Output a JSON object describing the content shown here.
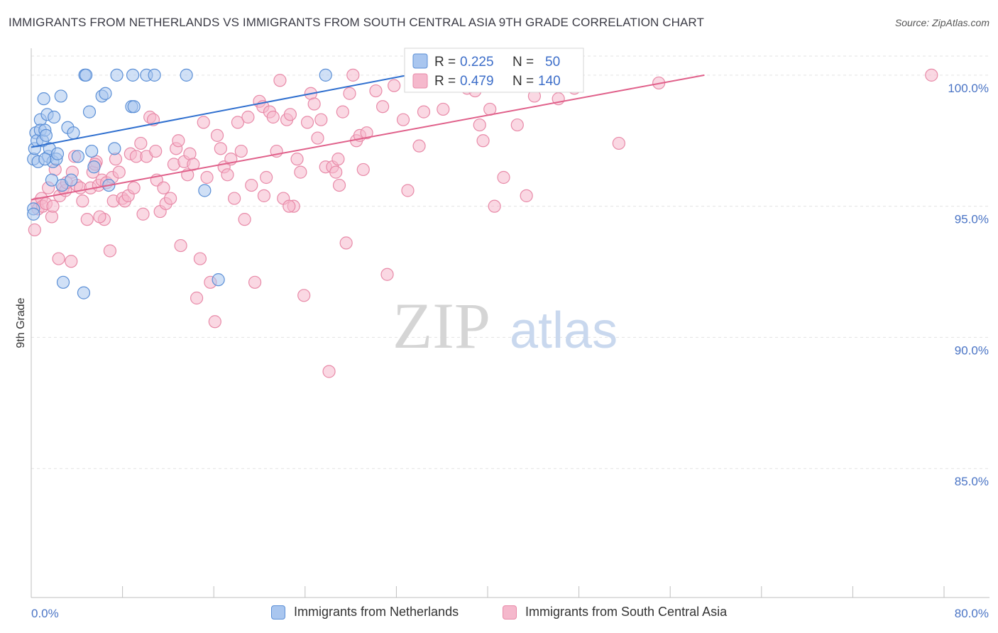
{
  "header": {
    "title": "IMMIGRANTS FROM NETHERLANDS VS IMMIGRANTS FROM SOUTH CENTRAL ASIA 9TH GRADE CORRELATION CHART",
    "source": "Source: ZipAtlas.com"
  },
  "watermark": {
    "zip": "ZIP",
    "atlas": "atlas"
  },
  "colors": {
    "blue_fill": "#a9c6ef",
    "blue_stroke": "#5b8fd6",
    "blue_line": "#2f6fcf",
    "pink_fill": "#f5b8cc",
    "pink_stroke": "#e88aa8",
    "pink_line": "#e0608a",
    "axis_text": "#4a74c5",
    "grid": "#e3e3e3"
  },
  "legend": {
    "blue": {
      "r_label": "R =",
      "r_value": "0.225",
      "n_label": "N =",
      "n_value": "50"
    },
    "pink": {
      "r_label": "R =",
      "r_value": "0.479",
      "n_label": "N =",
      "n_value": "140"
    }
  },
  "bottom_legend": {
    "blue": "Immigrants from Netherlands",
    "pink": "Immigrants from South Central Asia"
  },
  "chart_data": {
    "type": "scatter",
    "title": "IMMIGRANTS FROM NETHERLANDS VS IMMIGRANTS FROM SOUTH CENTRAL ASIA 9TH GRADE CORRELATION CHART",
    "xlabel": "",
    "ylabel": "9th Grade",
    "xlim": [
      0,
      80
    ],
    "ylim": [
      80,
      100.7
    ],
    "x_tick_labels": [
      "0.0%",
      "80.0%"
    ],
    "y_ticks": [
      85,
      90,
      95,
      100
    ],
    "y_tick_labels": [
      "85.0%",
      "90.0%",
      "95.0%",
      "100.0%"
    ],
    "series": [
      {
        "name": "Immigrants from Netherlands",
        "color": "blue",
        "R": 0.225,
        "N": 50,
        "trend": {
          "x": [
            0,
            33
          ],
          "y": [
            97.25,
            100.0
          ]
        },
        "points": [
          [
            0.2,
            96.8
          ],
          [
            0.3,
            97.2
          ],
          [
            0.4,
            97.8
          ],
          [
            0.5,
            97.5
          ],
          [
            0.6,
            96.7
          ],
          [
            0.8,
            98.3
          ],
          [
            0.8,
            97.9
          ],
          [
            1.0,
            97.5
          ],
          [
            1.1,
            99.1
          ],
          [
            1.2,
            97.9
          ],
          [
            1.3,
            97.7
          ],
          [
            1.4,
            98.5
          ],
          [
            1.5,
            96.9
          ],
          [
            1.6,
            97.2
          ],
          [
            1.8,
            96.0
          ],
          [
            1.9,
            96.7
          ],
          [
            2.0,
            98.4
          ],
          [
            2.2,
            96.8
          ],
          [
            2.3,
            97.0
          ],
          [
            2.6,
            99.2
          ],
          [
            2.7,
            95.8
          ],
          [
            3.2,
            98.0
          ],
          [
            3.5,
            96.0
          ],
          [
            3.7,
            97.8
          ],
          [
            4.1,
            96.9
          ],
          [
            4.7,
            100.0
          ],
          [
            4.8,
            100.0
          ],
          [
            5.1,
            98.6
          ],
          [
            5.3,
            97.1
          ],
          [
            5.5,
            96.5
          ],
          [
            6.2,
            99.2
          ],
          [
            6.5,
            99.3
          ],
          [
            6.8,
            95.8
          ],
          [
            7.3,
            97.2
          ],
          [
            7.5,
            100.0
          ],
          [
            8.8,
            98.8
          ],
          [
            8.9,
            100.0
          ],
          [
            9.0,
            98.8
          ],
          [
            10.1,
            100.0
          ],
          [
            10.8,
            100.0
          ],
          [
            13.6,
            100.0
          ],
          [
            15.2,
            95.6
          ],
          [
            16.4,
            92.2
          ],
          [
            25.8,
            100.0
          ],
          [
            2.8,
            92.1
          ],
          [
            4.6,
            91.7
          ],
          [
            0.2,
            94.9
          ],
          [
            0.2,
            94.7
          ],
          [
            1.2,
            96.8
          ],
          [
            36.5,
            100.0
          ]
        ]
      },
      {
        "name": "Immigrants from South Central Asia",
        "color": "pink",
        "R": 0.479,
        "N": 140,
        "trend": {
          "x": [
            0,
            59
          ],
          "y": [
            95.25,
            100.0
          ]
        },
        "points": [
          [
            0.3,
            94.1
          ],
          [
            0.5,
            95.1
          ],
          [
            0.6,
            94.9
          ],
          [
            0.9,
            95.3
          ],
          [
            1.0,
            95.0
          ],
          [
            1.3,
            95.1
          ],
          [
            1.5,
            95.7
          ],
          [
            1.8,
            94.6
          ],
          [
            1.9,
            95.0
          ],
          [
            2.4,
            93.0
          ],
          [
            2.5,
            95.4
          ],
          [
            2.8,
            95.7
          ],
          [
            3.0,
            95.6
          ],
          [
            3.1,
            95.9
          ],
          [
            3.5,
            92.9
          ],
          [
            3.6,
            96.3
          ],
          [
            3.8,
            96.9
          ],
          [
            4.0,
            95.8
          ],
          [
            4.3,
            95.7
          ],
          [
            4.5,
            95.2
          ],
          [
            4.9,
            94.5
          ],
          [
            5.2,
            95.7
          ],
          [
            5.4,
            96.3
          ],
          [
            5.7,
            96.7
          ],
          [
            5.9,
            95.8
          ],
          [
            6.2,
            96.0
          ],
          [
            6.4,
            94.5
          ],
          [
            6.6,
            95.9
          ],
          [
            6.9,
            93.3
          ],
          [
            7.1,
            96.1
          ],
          [
            7.2,
            95.2
          ],
          [
            7.4,
            96.8
          ],
          [
            7.7,
            96.3
          ],
          [
            8.0,
            95.3
          ],
          [
            8.2,
            95.2
          ],
          [
            8.5,
            95.4
          ],
          [
            8.7,
            97.0
          ],
          [
            9.0,
            95.7
          ],
          [
            9.2,
            96.9
          ],
          [
            9.6,
            97.4
          ],
          [
            9.8,
            94.7
          ],
          [
            10.1,
            96.9
          ],
          [
            10.4,
            98.4
          ],
          [
            10.7,
            98.3
          ],
          [
            11.0,
            96.0
          ],
          [
            11.3,
            94.8
          ],
          [
            11.6,
            95.7
          ],
          [
            11.8,
            95.1
          ],
          [
            12.2,
            95.3
          ],
          [
            12.5,
            96.6
          ],
          [
            12.7,
            97.2
          ],
          [
            13.1,
            93.5
          ],
          [
            13.4,
            96.7
          ],
          [
            13.7,
            96.2
          ],
          [
            13.9,
            97.0
          ],
          [
            14.2,
            96.6
          ],
          [
            14.5,
            91.5
          ],
          [
            14.8,
            93.0
          ],
          [
            15.1,
            98.2
          ],
          [
            15.4,
            96.1
          ],
          [
            15.7,
            92.1
          ],
          [
            16.1,
            90.6
          ],
          [
            16.3,
            97.7
          ],
          [
            16.6,
            97.2
          ],
          [
            16.9,
            96.5
          ],
          [
            17.2,
            96.2
          ],
          [
            17.5,
            96.8
          ],
          [
            17.8,
            95.3
          ],
          [
            18.1,
            98.2
          ],
          [
            18.4,
            97.1
          ],
          [
            18.7,
            94.5
          ],
          [
            19.0,
            98.4
          ],
          [
            19.3,
            95.8
          ],
          [
            19.6,
            92.1
          ],
          [
            20.0,
            99.0
          ],
          [
            20.3,
            98.8
          ],
          [
            20.6,
            96.1
          ],
          [
            20.9,
            98.6
          ],
          [
            21.2,
            98.4
          ],
          [
            21.5,
            97.1
          ],
          [
            21.8,
            99.8
          ],
          [
            22.1,
            95.3
          ],
          [
            22.4,
            98.3
          ],
          [
            22.7,
            98.5
          ],
          [
            23.0,
            95.0
          ],
          [
            23.3,
            96.8
          ],
          [
            23.6,
            96.3
          ],
          [
            23.9,
            91.6
          ],
          [
            24.2,
            98.2
          ],
          [
            24.5,
            99.3
          ],
          [
            24.8,
            98.9
          ],
          [
            25.1,
            97.6
          ],
          [
            25.4,
            98.3
          ],
          [
            25.8,
            96.5
          ],
          [
            26.1,
            88.7
          ],
          [
            26.4,
            96.5
          ],
          [
            26.7,
            96.3
          ],
          [
            27.0,
            95.8
          ],
          [
            27.3,
            98.6
          ],
          [
            27.6,
            93.6
          ],
          [
            27.9,
            99.3
          ],
          [
            28.2,
            100.0
          ],
          [
            28.5,
            97.5
          ],
          [
            28.8,
            97.7
          ],
          [
            29.1,
            96.4
          ],
          [
            29.4,
            97.8
          ],
          [
            30.2,
            99.4
          ],
          [
            30.8,
            98.8
          ],
          [
            31.2,
            92.4
          ],
          [
            31.8,
            99.6
          ],
          [
            32.6,
            98.3
          ],
          [
            33.0,
            95.6
          ],
          [
            33.6,
            100.0
          ],
          [
            34.0,
            97.3
          ],
          [
            34.4,
            98.6
          ],
          [
            35.4,
            100.0
          ],
          [
            36.1,
            98.7
          ],
          [
            37.4,
            100.0
          ],
          [
            38.2,
            99.5
          ],
          [
            38.9,
            99.4
          ],
          [
            39.3,
            98.1
          ],
          [
            39.6,
            97.5
          ],
          [
            40.2,
            98.7
          ],
          [
            40.6,
            95.0
          ],
          [
            41.4,
            96.1
          ],
          [
            42.6,
            98.1
          ],
          [
            43.4,
            95.4
          ],
          [
            44.1,
            99.2
          ],
          [
            45.2,
            99.9
          ],
          [
            46.2,
            99.1
          ],
          [
            47.6,
            99.5
          ],
          [
            51.5,
            97.4
          ],
          [
            55.0,
            99.7
          ],
          [
            78.9,
            100.0
          ],
          [
            2.1,
            96.4
          ],
          [
            5.6,
            96.6
          ],
          [
            6.0,
            94.6
          ],
          [
            10.9,
            97.1
          ],
          [
            12.9,
            97.5
          ],
          [
            20.4,
            95.4
          ],
          [
            22.6,
            95.0
          ],
          [
            26.9,
            96.8
          ]
        ]
      }
    ]
  }
}
